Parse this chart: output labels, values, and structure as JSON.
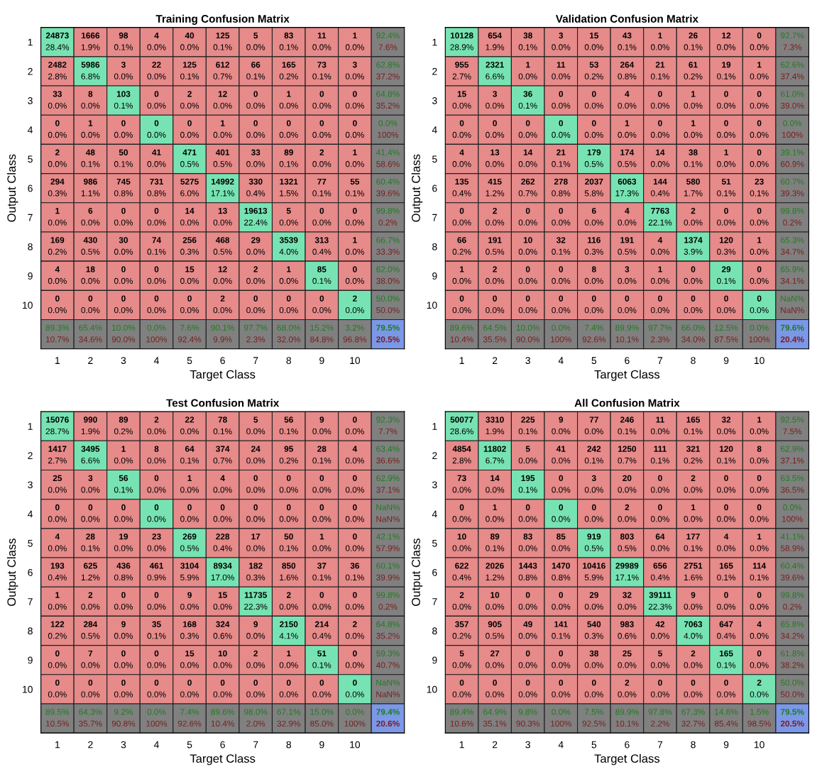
{
  "chart_data": [
    {
      "type": "heatmap",
      "data_labels": true,
      "title": "Training Confusion Matrix",
      "xlabel": "Target Class",
      "ylabel": "Output Class",
      "categories": [
        "1",
        "2",
        "3",
        "4",
        "5",
        "6",
        "7",
        "8",
        "9",
        "10"
      ],
      "y_categories": [
        "1",
        "2",
        "3",
        "4",
        "5",
        "6",
        "7",
        "8",
        "9",
        "10"
      ],
      "colors": [
        "#77e3b3",
        "#e68a8a",
        "#808080",
        "#7b97e8"
      ],
      "cells": [
        [
          24873,
          1666,
          98,
          4,
          40,
          125,
          5,
          83,
          11,
          1
        ],
        [
          2482,
          5986,
          3,
          22,
          125,
          612,
          66,
          165,
          73,
          3
        ],
        [
          33,
          8,
          103,
          0,
          2,
          12,
          0,
          1,
          0,
          0
        ],
        [
          0,
          1,
          0,
          0,
          0,
          1,
          0,
          0,
          0,
          0
        ],
        [
          2,
          48,
          50,
          41,
          471,
          401,
          33,
          89,
          2,
          1
        ],
        [
          294,
          986,
          745,
          731,
          5275,
          14992,
          330,
          1321,
          77,
          55
        ],
        [
          1,
          6,
          0,
          0,
          14,
          13,
          19613,
          5,
          0,
          0
        ],
        [
          169,
          430,
          30,
          74,
          256,
          468,
          29,
          3539,
          313,
          1
        ],
        [
          4,
          18,
          0,
          0,
          15,
          12,
          2,
          1,
          85,
          0
        ],
        [
          0,
          0,
          0,
          0,
          0,
          2,
          0,
          0,
          0,
          2
        ]
      ],
      "annotations": [
        "28.4%",
        "1.9%",
        "0.1%",
        "0.0%",
        "0.0%",
        "0.1%",
        "0.0%",
        "0.1%",
        "0.0%",
        "0.0%",
        "2.8%",
        "6.8%",
        "0.0%",
        "0.0%",
        "0.1%",
        "0.7%",
        "0.1%",
        "0.2%",
        "0.1%",
        "0.0%",
        "0.0%",
        "0.0%",
        "0.1%",
        "0.0%",
        "0.0%",
        "0.0%",
        "0.0%",
        "0.0%",
        "0.0%",
        "0.0%",
        "0.0%",
        "0.0%",
        "0.0%",
        "0.0%",
        "0.0%",
        "0.0%",
        "0.0%",
        "0.0%",
        "0.0%",
        "0.0%",
        "0.0%",
        "0.1%",
        "0.1%",
        "0.0%",
        "0.5%",
        "0.5%",
        "0.0%",
        "0.1%",
        "0.0%",
        "0.0%",
        "0.3%",
        "1.1%",
        "0.8%",
        "0.8%",
        "6.0%",
        "17.1%",
        "0.4%",
        "1.5%",
        "0.1%",
        "0.1%",
        "0.0%",
        "0.0%",
        "0.0%",
        "0.0%",
        "0.0%",
        "0.0%",
        "22.4%",
        "0.0%",
        "0.0%",
        "0.0%",
        "0.2%",
        "0.5%",
        "0.0%",
        "0.1%",
        "0.3%",
        "0.5%",
        "0.0%",
        "4.0%",
        "0.4%",
        "0.0%",
        "0.0%",
        "0.0%",
        "0.0%",
        "0.0%",
        "0.0%",
        "0.0%",
        "0.0%",
        "0.0%",
        "0.1%",
        "0.0%",
        "0.0%",
        "0.0%",
        "0.0%",
        "0.0%",
        "0.0%",
        "0.0%",
        "0.0%",
        "0.0%",
        "0.0%",
        "0.0%",
        "92.4%",
        "7.6%",
        "62.8%",
        "37.2%",
        "64.8%",
        "35.2%",
        "0.0%",
        "100%",
        "41.4%",
        "58.6%",
        "60.4%",
        "39.6%",
        "99.8%",
        "0.2%",
        "66.7%",
        "33.3%",
        "62.0%",
        "38.0%",
        "50.0%",
        "50.0%",
        "89.3%",
        "10.7%",
        "65.4%",
        "34.6%",
        "10.0%",
        "90.0%",
        "0.0%",
        "100%",
        "7.6%",
        "92.4%",
        "90.1%",
        "9.9%",
        "97.7%",
        "2.3%",
        "68.0%",
        "32.0%",
        "15.2%",
        "84.8%",
        "3.2%",
        "96.8%",
        "79.5%",
        "20.5%"
      ]
    },
    {
      "type": "heatmap",
      "data_labels": true,
      "title": "Validation Confusion Matrix",
      "xlabel": "Target Class",
      "ylabel": "Output Class",
      "categories": [
        "1",
        "2",
        "3",
        "4",
        "5",
        "6",
        "7",
        "8",
        "9",
        "10"
      ],
      "y_categories": [
        "1",
        "2",
        "3",
        "4",
        "5",
        "6",
        "7",
        "8",
        "9",
        "10"
      ],
      "colors": [
        "#77e3b3",
        "#e68a8a",
        "#808080",
        "#7b97e8"
      ],
      "cells": [
        [
          10128,
          654,
          38,
          3,
          15,
          43,
          1,
          26,
          12,
          0
        ],
        [
          955,
          2321,
          1,
          11,
          53,
          264,
          21,
          61,
          19,
          1
        ],
        [
          15,
          3,
          36,
          0,
          0,
          4,
          0,
          1,
          0,
          0
        ],
        [
          0,
          0,
          0,
          0,
          0,
          1,
          0,
          1,
          0,
          0
        ],
        [
          4,
          13,
          14,
          21,
          179,
          174,
          14,
          38,
          1,
          0
        ],
        [
          135,
          415,
          262,
          278,
          2037,
          6063,
          144,
          580,
          51,
          23
        ],
        [
          0,
          2,
          0,
          0,
          6,
          4,
          7763,
          2,
          0,
          0
        ],
        [
          66,
          191,
          10,
          32,
          116,
          191,
          4,
          1374,
          120,
          1
        ],
        [
          1,
          2,
          0,
          0,
          8,
          3,
          1,
          0,
          29,
          0
        ],
        [
          0,
          0,
          0,
          0,
          0,
          0,
          0,
          0,
          0,
          0
        ]
      ],
      "annotations": [
        "28.9%",
        "1.9%",
        "0.1%",
        "0.0%",
        "0.0%",
        "0.1%",
        "0.0%",
        "0.1%",
        "0.0%",
        "0.0%",
        "2.7%",
        "6.6%",
        "0.0%",
        "0.0%",
        "0.2%",
        "0.8%",
        "0.1%",
        "0.2%",
        "0.1%",
        "0.0%",
        "0.0%",
        "0.0%",
        "0.1%",
        "0.0%",
        "0.0%",
        "0.0%",
        "0.0%",
        "0.0%",
        "0.0%",
        "0.0%",
        "0.0%",
        "0.0%",
        "0.0%",
        "0.0%",
        "0.0%",
        "0.0%",
        "0.0%",
        "0.0%",
        "0.0%",
        "0.0%",
        "0.0%",
        "0.0%",
        "0.0%",
        "0.1%",
        "0.5%",
        "0.5%",
        "0.0%",
        "0.1%",
        "0.0%",
        "0.0%",
        "0.4%",
        "1.2%",
        "0.7%",
        "0.8%",
        "5.8%",
        "17.3%",
        "0.4%",
        "1.7%",
        "0.1%",
        "0.1%",
        "0.0%",
        "0.0%",
        "0.0%",
        "0.0%",
        "0.0%",
        "0.0%",
        "22.1%",
        "0.0%",
        "0.0%",
        "0.0%",
        "0.2%",
        "0.5%",
        "0.0%",
        "0.1%",
        "0.3%",
        "0.5%",
        "0.0%",
        "3.9%",
        "0.3%",
        "0.0%",
        "0.0%",
        "0.0%",
        "0.0%",
        "0.0%",
        "0.0%",
        "0.0%",
        "0.0%",
        "0.0%",
        "0.1%",
        "0.0%",
        "0.0%",
        "0.0%",
        "0.0%",
        "0.0%",
        "0.0%",
        "0.0%",
        "0.0%",
        "0.0%",
        "0.0%",
        "0.0%",
        "92.7%",
        "7.3%",
        "62.6%",
        "37.4%",
        "61.0%",
        "39.0%",
        "0.0%",
        "100%",
        "39.1%",
        "60.9%",
        "60.7%",
        "39.3%",
        "99.8%",
        "0.2%",
        "65.3%",
        "34.7%",
        "65.9%",
        "34.1%",
        "NaN%",
        "NaN%",
        "89.6%",
        "10.4%",
        "64.5%",
        "35.5%",
        "10.0%",
        "90.0%",
        "0.0%",
        "100%",
        "7.4%",
        "92.6%",
        "89.9%",
        "10.1%",
        "97.7%",
        "2.3%",
        "66.0%",
        "34.0%",
        "12.5%",
        "87.5%",
        "0.0%",
        "100%",
        "79.6%",
        "20.4%"
      ]
    },
    {
      "type": "heatmap",
      "data_labels": true,
      "title": "Test Confusion Matrix",
      "xlabel": "Target Class",
      "ylabel": "Output Class",
      "categories": [
        "1",
        "2",
        "3",
        "4",
        "5",
        "6",
        "7",
        "8",
        "9",
        "10"
      ],
      "y_categories": [
        "1",
        "2",
        "3",
        "4",
        "5",
        "6",
        "7",
        "8",
        "9",
        "10"
      ],
      "colors": [
        "#77e3b3",
        "#e68a8a",
        "#808080",
        "#7b97e8"
      ],
      "cells": [
        [
          15076,
          990,
          89,
          2,
          22,
          78,
          5,
          56,
          9,
          0
        ],
        [
          1417,
          3495,
          1,
          8,
          64,
          374,
          24,
          95,
          28,
          4
        ],
        [
          25,
          3,
          56,
          0,
          1,
          4,
          0,
          0,
          0,
          0
        ],
        [
          0,
          0,
          0,
          0,
          0,
          0,
          0,
          0,
          0,
          0
        ],
        [
          4,
          28,
          19,
          23,
          269,
          228,
          17,
          50,
          1,
          0
        ],
        [
          193,
          625,
          436,
          461,
          3104,
          8934,
          182,
          850,
          37,
          36
        ],
        [
          1,
          2,
          0,
          0,
          9,
          15,
          11735,
          2,
          0,
          0
        ],
        [
          122,
          284,
          9,
          35,
          168,
          324,
          9,
          2150,
          214,
          2
        ],
        [
          0,
          7,
          0,
          0,
          15,
          10,
          2,
          1,
          51,
          0
        ],
        [
          0,
          0,
          0,
          0,
          0,
          0,
          0,
          0,
          0,
          0
        ]
      ],
      "annotations": [
        "28.7%",
        "1.9%",
        "0.2%",
        "0.0%",
        "0.0%",
        "0.1%",
        "0.0%",
        "0.1%",
        "0.0%",
        "0.0%",
        "2.7%",
        "6.6%",
        "0.0%",
        "0.0%",
        "0.1%",
        "0.7%",
        "0.0%",
        "0.2%",
        "0.1%",
        "0.0%",
        "0.0%",
        "0.0%",
        "0.1%",
        "0.0%",
        "0.0%",
        "0.0%",
        "0.0%",
        "0.0%",
        "0.0%",
        "0.0%",
        "0.0%",
        "0.0%",
        "0.0%",
        "0.0%",
        "0.0%",
        "0.0%",
        "0.0%",
        "0.0%",
        "0.0%",
        "0.0%",
        "0.0%",
        "0.1%",
        "0.0%",
        "0.0%",
        "0.5%",
        "0.4%",
        "0.0%",
        "0.1%",
        "0.0%",
        "0.0%",
        "0.4%",
        "1.2%",
        "0.8%",
        "0.9%",
        "5.9%",
        "17.0%",
        "0.3%",
        "1.6%",
        "0.1%",
        "0.1%",
        "0.0%",
        "0.0%",
        "0.0%",
        "0.0%",
        "0.0%",
        "0.0%",
        "22.3%",
        "0.0%",
        "0.0%",
        "0.0%",
        "0.2%",
        "0.5%",
        "0.0%",
        "0.1%",
        "0.3%",
        "0.6%",
        "0.0%",
        "4.1%",
        "0.4%",
        "0.0%",
        "0.0%",
        "0.0%",
        "0.0%",
        "0.0%",
        "0.0%",
        "0.0%",
        "0.0%",
        "0.0%",
        "0.1%",
        "0.0%",
        "0.0%",
        "0.0%",
        "0.0%",
        "0.0%",
        "0.0%",
        "0.0%",
        "0.0%",
        "0.0%",
        "0.0%",
        "0.0%",
        "92.3%",
        "7.7%",
        "63.4%",
        "36.6%",
        "62.9%",
        "37.1%",
        "NaN%",
        "NaN%",
        "42.1%",
        "57.9%",
        "60.1%",
        "39.9%",
        "99.8%",
        "0.2%",
        "64.8%",
        "35.2%",
        "59.3%",
        "40.7%",
        "NaN%",
        "NaN%",
        "89.5%",
        "10.5%",
        "64.3%",
        "35.7%",
        "9.2%",
        "90.8%",
        "0.0%",
        "100%",
        "7.4%",
        "92.6%",
        "89.6%",
        "10.4%",
        "98.0%",
        "2.0%",
        "67.1%",
        "32.9%",
        "15.0%",
        "85.0%",
        "0.0%",
        "100%",
        "79.4%",
        "20.6%"
      ]
    },
    {
      "type": "heatmap",
      "data_labels": true,
      "title": "All Confusion Matrix",
      "xlabel": "Target Class",
      "ylabel": "Output Class",
      "categories": [
        "1",
        "2",
        "3",
        "4",
        "5",
        "6",
        "7",
        "8",
        "9",
        "10"
      ],
      "y_categories": [
        "1",
        "2",
        "3",
        "4",
        "5",
        "6",
        "7",
        "8",
        "9",
        "10"
      ],
      "colors": [
        "#77e3b3",
        "#e68a8a",
        "#808080",
        "#7b97e8"
      ],
      "cells": [
        [
          50077,
          3310,
          225,
          9,
          77,
          246,
          11,
          165,
          32,
          1
        ],
        [
          4854,
          11802,
          5,
          41,
          242,
          1250,
          111,
          321,
          120,
          8
        ],
        [
          73,
          14,
          195,
          0,
          3,
          20,
          0,
          2,
          0,
          0
        ],
        [
          0,
          1,
          0,
          0,
          0,
          2,
          0,
          1,
          0,
          0
        ],
        [
          10,
          89,
          83,
          85,
          919,
          803,
          64,
          177,
          4,
          1
        ],
        [
          622,
          2026,
          1443,
          1470,
          10416,
          29989,
          656,
          2751,
          165,
          114
        ],
        [
          2,
          10,
          0,
          0,
          29,
          32,
          39111,
          9,
          0,
          0
        ],
        [
          357,
          905,
          49,
          141,
          540,
          983,
          42,
          7063,
          647,
          4
        ],
        [
          5,
          27,
          0,
          0,
          38,
          25,
          5,
          2,
          165,
          0
        ],
        [
          0,
          0,
          0,
          0,
          0,
          2,
          0,
          0,
          0,
          2
        ]
      ],
      "annotations": [
        "28.6%",
        "1.9%",
        "0.1%",
        "0.0%",
        "0.0%",
        "0.1%",
        "0.0%",
        "0.1%",
        "0.0%",
        "0.0%",
        "2.8%",
        "6.7%",
        "0.0%",
        "0.0%",
        "0.1%",
        "0.7%",
        "0.1%",
        "0.2%",
        "0.1%",
        "0.0%",
        "0.0%",
        "0.0%",
        "0.1%",
        "0.0%",
        "0.0%",
        "0.0%",
        "0.0%",
        "0.0%",
        "0.0%",
        "0.0%",
        "0.0%",
        "0.0%",
        "0.0%",
        "0.0%",
        "0.0%",
        "0.0%",
        "0.0%",
        "0.0%",
        "0.0%",
        "0.0%",
        "0.0%",
        "0.1%",
        "0.0%",
        "0.0%",
        "0.5%",
        "0.5%",
        "0.0%",
        "0.1%",
        "0.0%",
        "0.0%",
        "0.4%",
        "1.2%",
        "0.8%",
        "0.8%",
        "5.9%",
        "17.1%",
        "0.4%",
        "1.6%",
        "0.1%",
        "0.1%",
        "0.0%",
        "0.0%",
        "0.0%",
        "0.0%",
        "0.0%",
        "0.0%",
        "22.3%",
        "0.0%",
        "0.0%",
        "0.0%",
        "0.2%",
        "0.5%",
        "0.0%",
        "0.1%",
        "0.3%",
        "0.6%",
        "0.0%",
        "4.0%",
        "0.4%",
        "0.0%",
        "0.0%",
        "0.0%",
        "0.0%",
        "0.0%",
        "0.0%",
        "0.0%",
        "0.0%",
        "0.0%",
        "0.1%",
        "0.0%",
        "0.0%",
        "0.0%",
        "0.0%",
        "0.0%",
        "0.0%",
        "0.0%",
        "0.0%",
        "0.0%",
        "0.0%",
        "0.0%",
        "92.5%",
        "7.5%",
        "62.9%",
        "37.1%",
        "63.5%",
        "36.5%",
        "0.0%",
        "100%",
        "41.1%",
        "58.9%",
        "60.4%",
        "39.6%",
        "99.8%",
        "0.2%",
        "65.8%",
        "34.2%",
        "61.8%",
        "38.2%",
        "50.0%",
        "50.0%",
        "89.4%",
        "10.6%",
        "64.9%",
        "35.1%",
        "9.8%",
        "90.3%",
        "0.0%",
        "100%",
        "7.5%",
        "92.5%",
        "89.9%",
        "10.1%",
        "97.8%",
        "2.2%",
        "67.3%",
        "32.7%",
        "14.6%",
        "85.4%",
        "1.5%",
        "98.5%",
        "79.5%",
        "20.5%"
      ]
    }
  ]
}
